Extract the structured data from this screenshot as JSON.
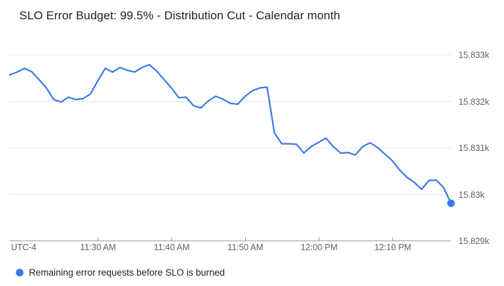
{
  "title": "SLO Error Budget: 99.5% - Distribution Cut - Calendar month",
  "legend": {
    "label": "Remaining error requests before SLO is burned",
    "marker": "blue-dot"
  },
  "colors": {
    "series_blue": "#3b78e7",
    "gridline": "#e7e7e7",
    "axis_line": "#9e9e9e",
    "axis_text": "#616161",
    "title_text": "#202124"
  },
  "chart_data": {
    "type": "line",
    "title": "SLO Error Budget: 99.5% - Distribution Cut - Calendar month",
    "grid": true,
    "legend_position": "bottom-left",
    "x_axis": {
      "utc_label": "UTC-4",
      "tick_labels": [
        "11:30 AM",
        "11:40 AM",
        "11:50 AM",
        "12:00 PM",
        "12:10 PM"
      ],
      "tick_minutes": [
        12,
        22,
        32,
        42,
        52
      ],
      "start_time": "11:18 AM",
      "end_time": "12:18 PM",
      "interval_minutes": 1
    },
    "y_axis": {
      "tick_labels": [
        "15.833k",
        "15.832k",
        "15.831k",
        "15.83k",
        "15.829k"
      ],
      "tick_values": [
        15833,
        15832,
        15831,
        15830,
        15829
      ],
      "range": [
        15829,
        15833
      ]
    },
    "series": [
      {
        "name": "Remaining error requests before SLO is burned",
        "color": "#3b78e7",
        "end_marker": true,
        "values": [
          15832.56,
          15832.62,
          15832.7,
          15832.63,
          15832.46,
          15832.28,
          15832.03,
          15831.98,
          15832.08,
          15832.03,
          15832.05,
          15832.15,
          15832.44,
          15832.7,
          15832.62,
          15832.72,
          15832.66,
          15832.62,
          15832.72,
          15832.78,
          15832.64,
          15832.46,
          15832.28,
          15832.07,
          15832.08,
          15831.9,
          15831.85,
          15832.0,
          15832.1,
          15832.04,
          15831.95,
          15831.93,
          15832.1,
          15832.22,
          15832.28,
          15832.3,
          15831.31,
          15831.08,
          15831.08,
          15831.07,
          15830.88,
          15831.02,
          15831.11,
          15831.2,
          15831.02,
          15830.88,
          15830.89,
          15830.84,
          15831.02,
          15831.1,
          15831.0,
          15830.86,
          15830.72,
          15830.52,
          15830.36,
          15830.25,
          15830.1,
          15830.29,
          15830.3,
          15830.14,
          15829.8
        ]
      }
    ]
  }
}
